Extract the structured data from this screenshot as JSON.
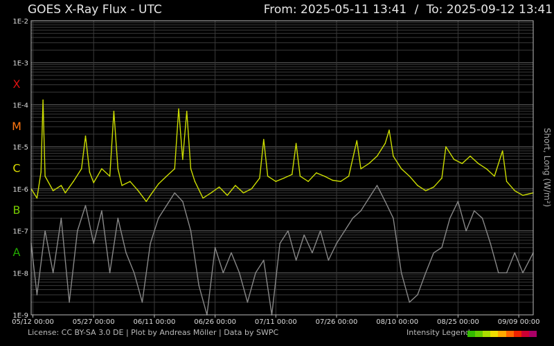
{
  "header": {
    "title": "GOES X-Ray Flux - UTC",
    "from_label": "From:",
    "from_value": "2025-05-11 13:41",
    "separator": "/",
    "to_label": "To:",
    "to_value": "2025-09-12 13:41"
  },
  "footer": {
    "license": "License: CC BY-SA 3.0 DE | Plot by Andreas Möller | Data by SWPC",
    "legend_label": "Intensity Legend",
    "legend_colors": [
      "#33bb00",
      "#66cc00",
      "#aadd00",
      "#eedd00",
      "#ffaa00",
      "#ff6600",
      "#ee2200",
      "#cc0033",
      "#aa0066"
    ]
  },
  "chart_data": {
    "type": "line",
    "title": "GOES X-Ray Flux - UTC",
    "ylabel": "Short, Long (W/m²)",
    "y_scale": "log",
    "ylim": [
      1e-09,
      0.01
    ],
    "y_tick_labels": [
      "1E-2",
      "1E-3",
      "1E-4",
      "1E-5",
      "1E-6",
      "1E-7",
      "1E-8",
      "1E-9"
    ],
    "y_tick_values": [
      0.01,
      0.001,
      0.0001,
      1e-05,
      1e-06,
      1e-07,
      1e-08,
      1e-09
    ],
    "flare_classes": [
      {
        "label": "X",
        "value": 0.000316,
        "color": "#dd1111"
      },
      {
        "label": "M",
        "value": 3.16e-05,
        "color": "#ff7711"
      },
      {
        "label": "C",
        "value": 3.16e-06,
        "color": "#dddd00"
      },
      {
        "label": "B",
        "value": 3.16e-07,
        "color": "#77cc00"
      },
      {
        "label": "A",
        "value": 3.16e-08,
        "color": "#22aa00"
      }
    ],
    "xlim": [
      "2025-05-11 13:41",
      "2025-09-12 13:41"
    ],
    "x_ticks": [
      {
        "label": "05/12 00:00",
        "value": "2025-05-12 00:00"
      },
      {
        "label": "05/27 00:00",
        "value": "2025-05-27 00:00"
      },
      {
        "label": "06/11 00:00",
        "value": "2025-06-11 00:00"
      },
      {
        "label": "06/26 00:00",
        "value": "2025-06-26 00:00"
      },
      {
        "label": "07/11 00:00",
        "value": "2025-07-11 00:00"
      },
      {
        "label": "07/26 00:00",
        "value": "2025-07-26 00:00"
      },
      {
        "label": "08/10 00:00",
        "value": "2025-08-10 00:00"
      },
      {
        "label": "08/25 00:00",
        "value": "2025-08-25 00:00"
      },
      {
        "label": "09/09 00:00",
        "value": "2025-09-09 00:00"
      }
    ],
    "grid": true,
    "series": [
      {
        "color": "#ccdd00",
        "points": [
          [
            "2025-05-11 13:41",
            1e-06
          ],
          [
            "2025-05-13 00:00",
            6e-07
          ],
          [
            "2025-05-14 00:00",
            2.5e-06
          ],
          [
            "2025-05-14 12:00",
            0.00013
          ],
          [
            "2025-05-15 00:00",
            2e-06
          ],
          [
            "2025-05-17 00:00",
            9e-07
          ],
          [
            "2025-05-19 00:00",
            1.2e-06
          ],
          [
            "2025-05-20 00:00",
            8e-07
          ],
          [
            "2025-05-22 00:00",
            1.5e-06
          ],
          [
            "2025-05-24 00:00",
            3e-06
          ],
          [
            "2025-05-25 00:00",
            1.8e-05
          ],
          [
            "2025-05-26 00:00",
            2.5e-06
          ],
          [
            "2025-05-27 00:00",
            1.4e-06
          ],
          [
            "2025-05-29 00:00",
            3e-06
          ],
          [
            "2025-05-31 00:00",
            2e-06
          ],
          [
            "2025-06-01 00:00",
            7e-05
          ],
          [
            "2025-06-02 00:00",
            3e-06
          ],
          [
            "2025-06-03 00:00",
            1.2e-06
          ],
          [
            "2025-06-05 00:00",
            1.5e-06
          ],
          [
            "2025-06-07 00:00",
            9e-07
          ],
          [
            "2025-06-09 00:00",
            5e-07
          ],
          [
            "2025-06-10 00:00",
            7e-07
          ],
          [
            "2025-06-12 00:00",
            1.3e-06
          ],
          [
            "2025-06-14 00:00",
            2e-06
          ],
          [
            "2025-06-16 00:00",
            3e-06
          ],
          [
            "2025-06-17 00:00",
            8e-05
          ],
          [
            "2025-06-18 00:00",
            5e-06
          ],
          [
            "2025-06-19 00:00",
            7e-05
          ],
          [
            "2025-06-20 00:00",
            3e-06
          ],
          [
            "2025-06-21 00:00",
            1.5e-06
          ],
          [
            "2025-06-23 00:00",
            6e-07
          ],
          [
            "2025-06-25 00:00",
            8e-07
          ],
          [
            "2025-06-27 00:00",
            1.1e-06
          ],
          [
            "2025-06-29 00:00",
            7e-07
          ],
          [
            "2025-07-01 00:00",
            1.2e-06
          ],
          [
            "2025-07-03 00:00",
            8e-07
          ],
          [
            "2025-07-05 00:00",
            1e-06
          ],
          [
            "2025-07-07 00:00",
            1.8e-06
          ],
          [
            "2025-07-08 00:00",
            1.5e-05
          ],
          [
            "2025-07-09 00:00",
            2e-06
          ],
          [
            "2025-07-11 00:00",
            1.5e-06
          ],
          [
            "2025-07-13 00:00",
            1.8e-06
          ],
          [
            "2025-07-15 00:00",
            2.2e-06
          ],
          [
            "2025-07-16 00:00",
            1.2e-05
          ],
          [
            "2025-07-17 00:00",
            2e-06
          ],
          [
            "2025-07-19 00:00",
            1.5e-06
          ],
          [
            "2025-07-21 00:00",
            2.4e-06
          ],
          [
            "2025-07-23 00:00",
            2e-06
          ],
          [
            "2025-07-25 00:00",
            1.6e-06
          ],
          [
            "2025-07-27 00:00",
            1.5e-06
          ],
          [
            "2025-07-29 00:00",
            2e-06
          ],
          [
            "2025-07-31 00:00",
            1.4e-05
          ],
          [
            "2025-08-01 00:00",
            3e-06
          ],
          [
            "2025-08-03 00:00",
            4e-06
          ],
          [
            "2025-08-05 00:00",
            6e-06
          ],
          [
            "2025-08-07 00:00",
            1.2e-05
          ],
          [
            "2025-08-08 00:00",
            2.5e-05
          ],
          [
            "2025-08-09 00:00",
            6e-06
          ],
          [
            "2025-08-11 00:00",
            3e-06
          ],
          [
            "2025-08-13 00:00",
            2e-06
          ],
          [
            "2025-08-15 00:00",
            1.2e-06
          ],
          [
            "2025-08-17 00:00",
            9e-07
          ],
          [
            "2025-08-19 00:00",
            1.1e-06
          ],
          [
            "2025-08-21 00:00",
            1.8e-06
          ],
          [
            "2025-08-22 00:00",
            1e-05
          ],
          [
            "2025-08-24 00:00",
            5e-06
          ],
          [
            "2025-08-26 00:00",
            4e-06
          ],
          [
            "2025-08-28 00:00",
            6e-06
          ],
          [
            "2025-08-30 00:00",
            4e-06
          ],
          [
            "2025-09-01 00:00",
            3e-06
          ],
          [
            "2025-09-03 00:00",
            2e-06
          ],
          [
            "2025-09-05 00:00",
            8e-06
          ],
          [
            "2025-09-06 00:00",
            1.5e-06
          ],
          [
            "2025-09-08 00:00",
            9e-07
          ],
          [
            "2025-09-10 00:00",
            7e-07
          ],
          [
            "2025-09-12 13:41",
            8e-07
          ]
        ]
      },
      {
        "color": "#888888",
        "points": [
          [
            "2025-05-11 13:41",
            5e-08
          ],
          [
            "2025-05-13 00:00",
            3e-09
          ],
          [
            "2025-05-15 00:00",
            1e-07
          ],
          [
            "2025-05-17 00:00",
            1e-08
          ],
          [
            "2025-05-19 00:00",
            2e-07
          ],
          [
            "2025-05-21 00:00",
            2e-09
          ],
          [
            "2025-05-23 00:00",
            1e-07
          ],
          [
            "2025-05-25 00:00",
            4e-07
          ],
          [
            "2025-05-27 00:00",
            5e-08
          ],
          [
            "2025-05-29 00:00",
            3e-07
          ],
          [
            "2025-05-31 00:00",
            1e-08
          ],
          [
            "2025-06-02 00:00",
            2e-07
          ],
          [
            "2025-06-04 00:00",
            3e-08
          ],
          [
            "2025-06-06 00:00",
            1e-08
          ],
          [
            "2025-06-08 00:00",
            2e-09
          ],
          [
            "2025-06-10 00:00",
            5e-08
          ],
          [
            "2025-06-12 00:00",
            2e-07
          ],
          [
            "2025-06-14 00:00",
            4e-07
          ],
          [
            "2025-06-16 00:00",
            8e-07
          ],
          [
            "2025-06-18 00:00",
            5e-07
          ],
          [
            "2025-06-20 00:00",
            1e-07
          ],
          [
            "2025-06-22 00:00",
            5e-09
          ],
          [
            "2025-06-24 00:00",
            1e-09
          ],
          [
            "2025-06-26 00:00",
            4e-08
          ],
          [
            "2025-06-28 00:00",
            1e-08
          ],
          [
            "2025-06-30 00:00",
            3e-08
          ],
          [
            "2025-07-02 00:00",
            1e-08
          ],
          [
            "2025-07-04 00:00",
            2e-09
          ],
          [
            "2025-07-06 00:00",
            1e-08
          ],
          [
            "2025-07-08 00:00",
            2e-08
          ],
          [
            "2025-07-10 00:00",
            1e-09
          ],
          [
            "2025-07-12 00:00",
            5e-08
          ],
          [
            "2025-07-14 00:00",
            1e-07
          ],
          [
            "2025-07-16 00:00",
            2e-08
          ],
          [
            "2025-07-18 00:00",
            8e-08
          ],
          [
            "2025-07-20 00:00",
            3e-08
          ],
          [
            "2025-07-22 00:00",
            1e-07
          ],
          [
            "2025-07-24 00:00",
            2e-08
          ],
          [
            "2025-07-26 00:00",
            5e-08
          ],
          [
            "2025-07-28 00:00",
            1e-07
          ],
          [
            "2025-07-30 00:00",
            2e-07
          ],
          [
            "2025-08-01 00:00",
            3e-07
          ],
          [
            "2025-08-03 00:00",
            6e-07
          ],
          [
            "2025-08-05 00:00",
            1.2e-06
          ],
          [
            "2025-08-07 00:00",
            5e-07
          ],
          [
            "2025-08-09 00:00",
            2e-07
          ],
          [
            "2025-08-11 00:00",
            1e-08
          ],
          [
            "2025-08-13 00:00",
            2e-09
          ],
          [
            "2025-08-15 00:00",
            3e-09
          ],
          [
            "2025-08-17 00:00",
            1e-08
          ],
          [
            "2025-08-19 00:00",
            3e-08
          ],
          [
            "2025-08-21 00:00",
            4e-08
          ],
          [
            "2025-08-23 00:00",
            2e-07
          ],
          [
            "2025-08-25 00:00",
            5e-07
          ],
          [
            "2025-08-27 00:00",
            1e-07
          ],
          [
            "2025-08-29 00:00",
            3e-07
          ],
          [
            "2025-08-31 00:00",
            2e-07
          ],
          [
            "2025-09-02 00:00",
            5e-08
          ],
          [
            "2025-09-04 00:00",
            1e-08
          ],
          [
            "2025-09-06 00:00",
            1e-08
          ],
          [
            "2025-09-08 00:00",
            3e-08
          ],
          [
            "2025-09-10 00:00",
            1e-08
          ],
          [
            "2025-09-12 13:41",
            3e-08
          ]
        ]
      }
    ]
  }
}
